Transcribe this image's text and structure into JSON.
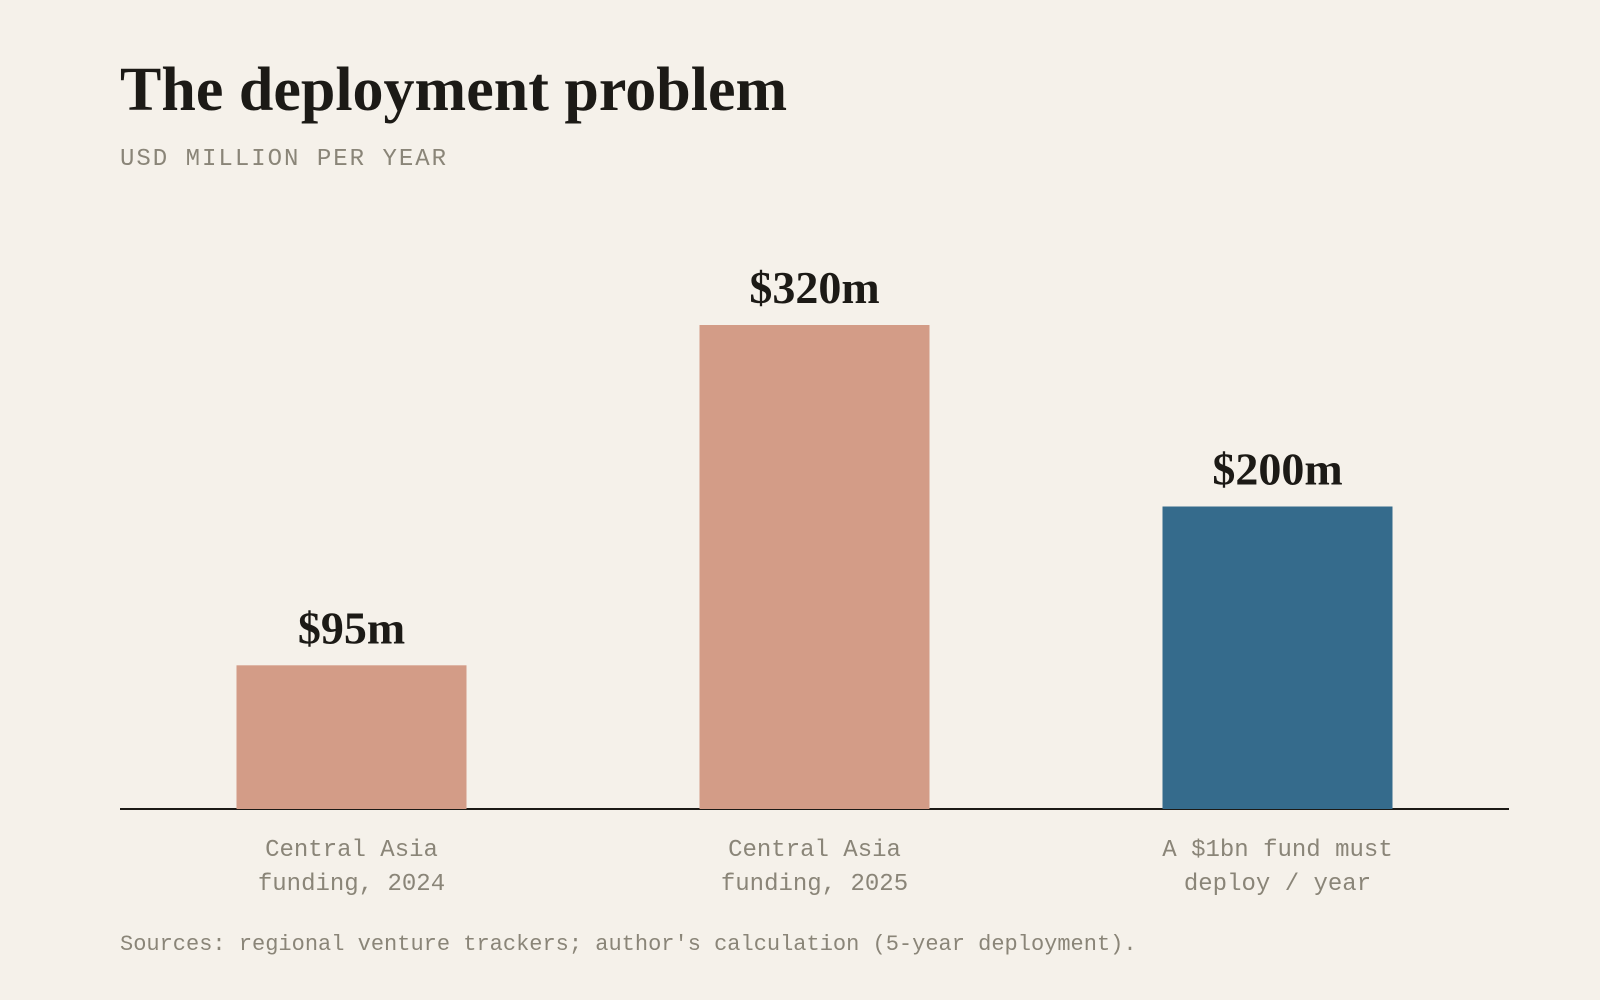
{
  "chart_data": {
    "type": "bar",
    "title": "The deployment problem",
    "subtitle": "USD MILLION PER YEAR",
    "categories": [
      "Central Asia funding, 2024",
      "Central Asia funding, 2025",
      "A $1bn fund must deploy / year"
    ],
    "values": [
      95,
      320,
      200
    ],
    "value_labels": [
      "$95m",
      "$320m",
      "$200m"
    ],
    "colors": [
      "#d39c87",
      "#d39c87",
      "#356b8c"
    ],
    "source": "Sources: regional venture trackers; author's calculation (5-year deployment)."
  }
}
